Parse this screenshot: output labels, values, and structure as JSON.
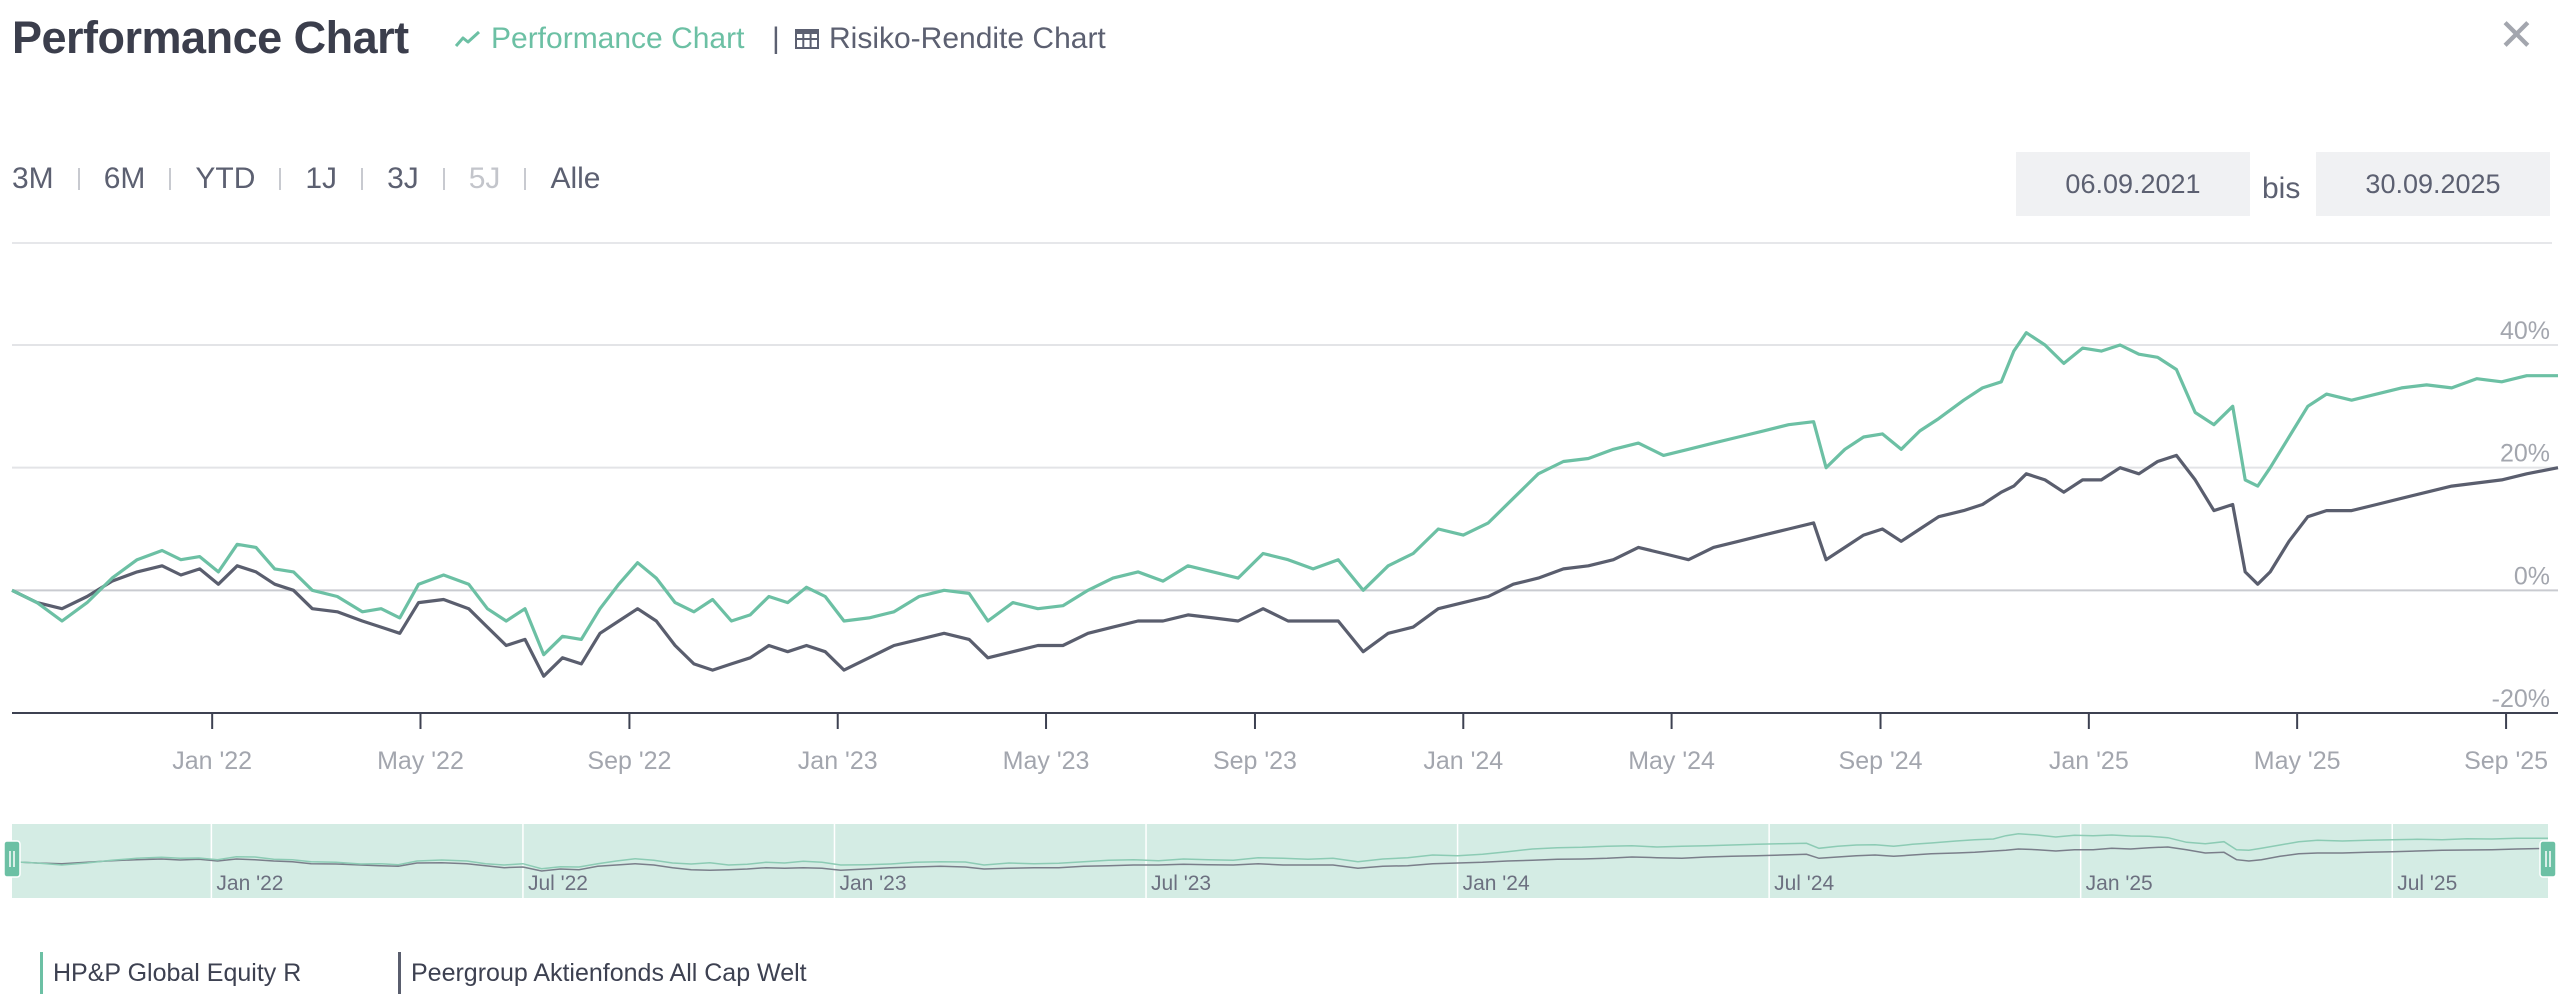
{
  "header": {
    "title": "Performance Chart",
    "tab_performance": "Performance Chart",
    "tab_separator": "|",
    "tab_risk": "Risiko-Rendite Chart",
    "close_symbol": "✕"
  },
  "ranges": [
    {
      "label": "3M",
      "enabled": true
    },
    {
      "label": "6M",
      "enabled": true
    },
    {
      "label": "YTD",
      "enabled": true
    },
    {
      "label": "1J",
      "enabled": true
    },
    {
      "label": "3J",
      "enabled": true
    },
    {
      "label": "5J",
      "enabled": false
    },
    {
      "label": "Alle",
      "enabled": true
    }
  ],
  "dates": {
    "from": "06.09.2021",
    "connector": "bis",
    "to": "30.09.2025"
  },
  "colors": {
    "fund": "#6cc0a4",
    "peer": "#5a5e6e",
    "navigator_fill": "#d4ece4",
    "grid": "#e3e4e7",
    "axis_text": "#a3a6ae"
  },
  "chart_data": {
    "type": "line",
    "title": "Performance Chart",
    "xlabel": "",
    "ylabel": "",
    "ylim": [
      -20,
      40
    ],
    "x_range": [
      2021.68,
      2025.75
    ],
    "y_ticks": [
      {
        "value": 40,
        "label": "40%"
      },
      {
        "value": 20,
        "label": "20%"
      },
      {
        "value": 0,
        "label": "0%"
      },
      {
        "value": -20,
        "label": "-20%"
      }
    ],
    "x_ticks": [
      {
        "value": 2022.0,
        "label": "Jan '22"
      },
      {
        "value": 2022.333,
        "label": "May '22"
      },
      {
        "value": 2022.667,
        "label": "Sep '22"
      },
      {
        "value": 2023.0,
        "label": "Jan '23"
      },
      {
        "value": 2023.333,
        "label": "May '23"
      },
      {
        "value": 2023.667,
        "label": "Sep '23"
      },
      {
        "value": 2024.0,
        "label": "Jan '24"
      },
      {
        "value": 2024.333,
        "label": "May '24"
      },
      {
        "value": 2024.667,
        "label": "Sep '24"
      },
      {
        "value": 2025.0,
        "label": "Jan '25"
      },
      {
        "value": 2025.333,
        "label": "May '25"
      },
      {
        "value": 2025.667,
        "label": "Sep '25"
      }
    ],
    "navigator_ticks": [
      {
        "value": 2022.0,
        "label": "Jan '22"
      },
      {
        "value": 2022.5,
        "label": "Jul '22"
      },
      {
        "value": 2023.0,
        "label": "Jan '23"
      },
      {
        "value": 2023.5,
        "label": "Jul '23"
      },
      {
        "value": 2024.0,
        "label": "Jan '24"
      },
      {
        "value": 2024.5,
        "label": "Jul '24"
      },
      {
        "value": 2025.0,
        "label": "Jan '25"
      },
      {
        "value": 2025.5,
        "label": "Jul '25"
      }
    ],
    "series": [
      {
        "name": "HP&P Global Equity R",
        "color": "#6cc0a4",
        "points": [
          [
            2021.68,
            0
          ],
          [
            2021.72,
            -2
          ],
          [
            2021.76,
            -5
          ],
          [
            2021.8,
            -2
          ],
          [
            2021.84,
            2
          ],
          [
            2021.88,
            5
          ],
          [
            2021.92,
            6.5
          ],
          [
            2021.95,
            5
          ],
          [
            2021.98,
            5.5
          ],
          [
            2022.01,
            3
          ],
          [
            2022.04,
            7.5
          ],
          [
            2022.07,
            7
          ],
          [
            2022.1,
            3.5
          ],
          [
            2022.13,
            3
          ],
          [
            2022.16,
            0
          ],
          [
            2022.2,
            -1
          ],
          [
            2022.24,
            -3.5
          ],
          [
            2022.27,
            -3
          ],
          [
            2022.3,
            -4.5
          ],
          [
            2022.33,
            1
          ],
          [
            2022.37,
            2.5
          ],
          [
            2022.41,
            1
          ],
          [
            2022.44,
            -3
          ],
          [
            2022.47,
            -5
          ],
          [
            2022.5,
            -3
          ],
          [
            2022.53,
            -10.5
          ],
          [
            2022.56,
            -7.5
          ],
          [
            2022.59,
            -8
          ],
          [
            2022.62,
            -3
          ],
          [
            2022.65,
            1
          ],
          [
            2022.68,
            4.5
          ],
          [
            2022.71,
            2
          ],
          [
            2022.74,
            -2
          ],
          [
            2022.77,
            -3.5
          ],
          [
            2022.8,
            -1.5
          ],
          [
            2022.83,
            -5
          ],
          [
            2022.86,
            -4
          ],
          [
            2022.89,
            -1
          ],
          [
            2022.92,
            -2
          ],
          [
            2022.95,
            0.5
          ],
          [
            2022.98,
            -1
          ],
          [
            2023.01,
            -5
          ],
          [
            2023.05,
            -4.5
          ],
          [
            2023.09,
            -3.5
          ],
          [
            2023.13,
            -1
          ],
          [
            2023.17,
            0
          ],
          [
            2023.21,
            -0.5
          ],
          [
            2023.24,
            -5
          ],
          [
            2023.28,
            -2
          ],
          [
            2023.32,
            -3
          ],
          [
            2023.36,
            -2.5
          ],
          [
            2023.4,
            0
          ],
          [
            2023.44,
            2
          ],
          [
            2023.48,
            3
          ],
          [
            2023.52,
            1.5
          ],
          [
            2023.56,
            4
          ],
          [
            2023.6,
            3
          ],
          [
            2023.64,
            2
          ],
          [
            2023.68,
            6
          ],
          [
            2023.72,
            5
          ],
          [
            2023.76,
            3.5
          ],
          [
            2023.8,
            5
          ],
          [
            2023.84,
            0
          ],
          [
            2023.88,
            4
          ],
          [
            2023.92,
            6
          ],
          [
            2023.96,
            10
          ],
          [
            2024.0,
            9
          ],
          [
            2024.04,
            11
          ],
          [
            2024.08,
            15
          ],
          [
            2024.12,
            19
          ],
          [
            2024.16,
            21
          ],
          [
            2024.2,
            21.5
          ],
          [
            2024.24,
            23
          ],
          [
            2024.28,
            24
          ],
          [
            2024.32,
            22
          ],
          [
            2024.36,
            23
          ],
          [
            2024.4,
            24
          ],
          [
            2024.44,
            25
          ],
          [
            2024.48,
            26
          ],
          [
            2024.52,
            27
          ],
          [
            2024.56,
            27.5
          ],
          [
            2024.58,
            20
          ],
          [
            2024.61,
            23
          ],
          [
            2024.64,
            25
          ],
          [
            2024.67,
            25.5
          ],
          [
            2024.7,
            23
          ],
          [
            2024.73,
            26
          ],
          [
            2024.76,
            28
          ],
          [
            2024.8,
            31
          ],
          [
            2024.83,
            33
          ],
          [
            2024.86,
            34
          ],
          [
            2024.88,
            39
          ],
          [
            2024.9,
            42
          ],
          [
            2024.93,
            40
          ],
          [
            2024.96,
            37
          ],
          [
            2024.99,
            39.5
          ],
          [
            2025.02,
            39
          ],
          [
            2025.05,
            40
          ],
          [
            2025.08,
            38.5
          ],
          [
            2025.11,
            38
          ],
          [
            2025.14,
            36
          ],
          [
            2025.17,
            29
          ],
          [
            2025.2,
            27
          ],
          [
            2025.23,
            30
          ],
          [
            2025.25,
            18
          ],
          [
            2025.27,
            17
          ],
          [
            2025.29,
            20
          ],
          [
            2025.32,
            25
          ],
          [
            2025.35,
            30
          ],
          [
            2025.38,
            32
          ],
          [
            2025.42,
            31
          ],
          [
            2025.46,
            32
          ],
          [
            2025.5,
            33
          ],
          [
            2025.54,
            33.5
          ],
          [
            2025.58,
            33
          ],
          [
            2025.62,
            34.5
          ],
          [
            2025.66,
            34
          ],
          [
            2025.7,
            35
          ],
          [
            2025.75,
            35
          ]
        ]
      },
      {
        "name": "Peergroup Aktienfonds All Cap Welt",
        "color": "#5a5e6e",
        "points": [
          [
            2021.68,
            0
          ],
          [
            2021.72,
            -2
          ],
          [
            2021.76,
            -3
          ],
          [
            2021.8,
            -1
          ],
          [
            2021.84,
            1.5
          ],
          [
            2021.88,
            3
          ],
          [
            2021.92,
            4
          ],
          [
            2021.95,
            2.5
          ],
          [
            2021.98,
            3.5
          ],
          [
            2022.01,
            1
          ],
          [
            2022.04,
            4
          ],
          [
            2022.07,
            3
          ],
          [
            2022.1,
            1
          ],
          [
            2022.13,
            0
          ],
          [
            2022.16,
            -3
          ],
          [
            2022.2,
            -3.5
          ],
          [
            2022.24,
            -5
          ],
          [
            2022.27,
            -6
          ],
          [
            2022.3,
            -7
          ],
          [
            2022.33,
            -2
          ],
          [
            2022.37,
            -1.5
          ],
          [
            2022.41,
            -3
          ],
          [
            2022.44,
            -6
          ],
          [
            2022.47,
            -9
          ],
          [
            2022.5,
            -8
          ],
          [
            2022.53,
            -14
          ],
          [
            2022.56,
            -11
          ],
          [
            2022.59,
            -12
          ],
          [
            2022.62,
            -7
          ],
          [
            2022.65,
            -5
          ],
          [
            2022.68,
            -3
          ],
          [
            2022.71,
            -5
          ],
          [
            2022.74,
            -9
          ],
          [
            2022.77,
            -12
          ],
          [
            2022.8,
            -13
          ],
          [
            2022.83,
            -12
          ],
          [
            2022.86,
            -11
          ],
          [
            2022.89,
            -9
          ],
          [
            2022.92,
            -10
          ],
          [
            2022.95,
            -9
          ],
          [
            2022.98,
            -10
          ],
          [
            2023.01,
            -13
          ],
          [
            2023.05,
            -11
          ],
          [
            2023.09,
            -9
          ],
          [
            2023.13,
            -8
          ],
          [
            2023.17,
            -7
          ],
          [
            2023.21,
            -8
          ],
          [
            2023.24,
            -11
          ],
          [
            2023.28,
            -10
          ],
          [
            2023.32,
            -9
          ],
          [
            2023.36,
            -9
          ],
          [
            2023.4,
            -7
          ],
          [
            2023.44,
            -6
          ],
          [
            2023.48,
            -5
          ],
          [
            2023.52,
            -5
          ],
          [
            2023.56,
            -4
          ],
          [
            2023.6,
            -4.5
          ],
          [
            2023.64,
            -5
          ],
          [
            2023.68,
            -3
          ],
          [
            2023.72,
            -5
          ],
          [
            2023.76,
            -5
          ],
          [
            2023.8,
            -5
          ],
          [
            2023.84,
            -10
          ],
          [
            2023.88,
            -7
          ],
          [
            2023.92,
            -6
          ],
          [
            2023.96,
            -3
          ],
          [
            2024.0,
            -2
          ],
          [
            2024.04,
            -1
          ],
          [
            2024.08,
            1
          ],
          [
            2024.12,
            2
          ],
          [
            2024.16,
            3.5
          ],
          [
            2024.2,
            4
          ],
          [
            2024.24,
            5
          ],
          [
            2024.28,
            7
          ],
          [
            2024.32,
            6
          ],
          [
            2024.36,
            5
          ],
          [
            2024.4,
            7
          ],
          [
            2024.44,
            8
          ],
          [
            2024.48,
            9
          ],
          [
            2024.52,
            10
          ],
          [
            2024.56,
            11
          ],
          [
            2024.58,
            5
          ],
          [
            2024.61,
            7
          ],
          [
            2024.64,
            9
          ],
          [
            2024.67,
            10
          ],
          [
            2024.7,
            8
          ],
          [
            2024.73,
            10
          ],
          [
            2024.76,
            12
          ],
          [
            2024.8,
            13
          ],
          [
            2024.83,
            14
          ],
          [
            2024.86,
            16
          ],
          [
            2024.88,
            17
          ],
          [
            2024.9,
            19
          ],
          [
            2024.93,
            18
          ],
          [
            2024.96,
            16
          ],
          [
            2024.99,
            18
          ],
          [
            2025.02,
            18
          ],
          [
            2025.05,
            20
          ],
          [
            2025.08,
            19
          ],
          [
            2025.11,
            21
          ],
          [
            2025.14,
            22
          ],
          [
            2025.17,
            18
          ],
          [
            2025.2,
            13
          ],
          [
            2025.23,
            14
          ],
          [
            2025.25,
            3
          ],
          [
            2025.27,
            1
          ],
          [
            2025.29,
            3
          ],
          [
            2025.32,
            8
          ],
          [
            2025.35,
            12
          ],
          [
            2025.38,
            13
          ],
          [
            2025.42,
            13
          ],
          [
            2025.46,
            14
          ],
          [
            2025.5,
            15
          ],
          [
            2025.54,
            16
          ],
          [
            2025.58,
            17
          ],
          [
            2025.62,
            17.5
          ],
          [
            2025.66,
            18
          ],
          [
            2025.7,
            19
          ],
          [
            2025.75,
            20
          ]
        ]
      }
    ]
  }
}
